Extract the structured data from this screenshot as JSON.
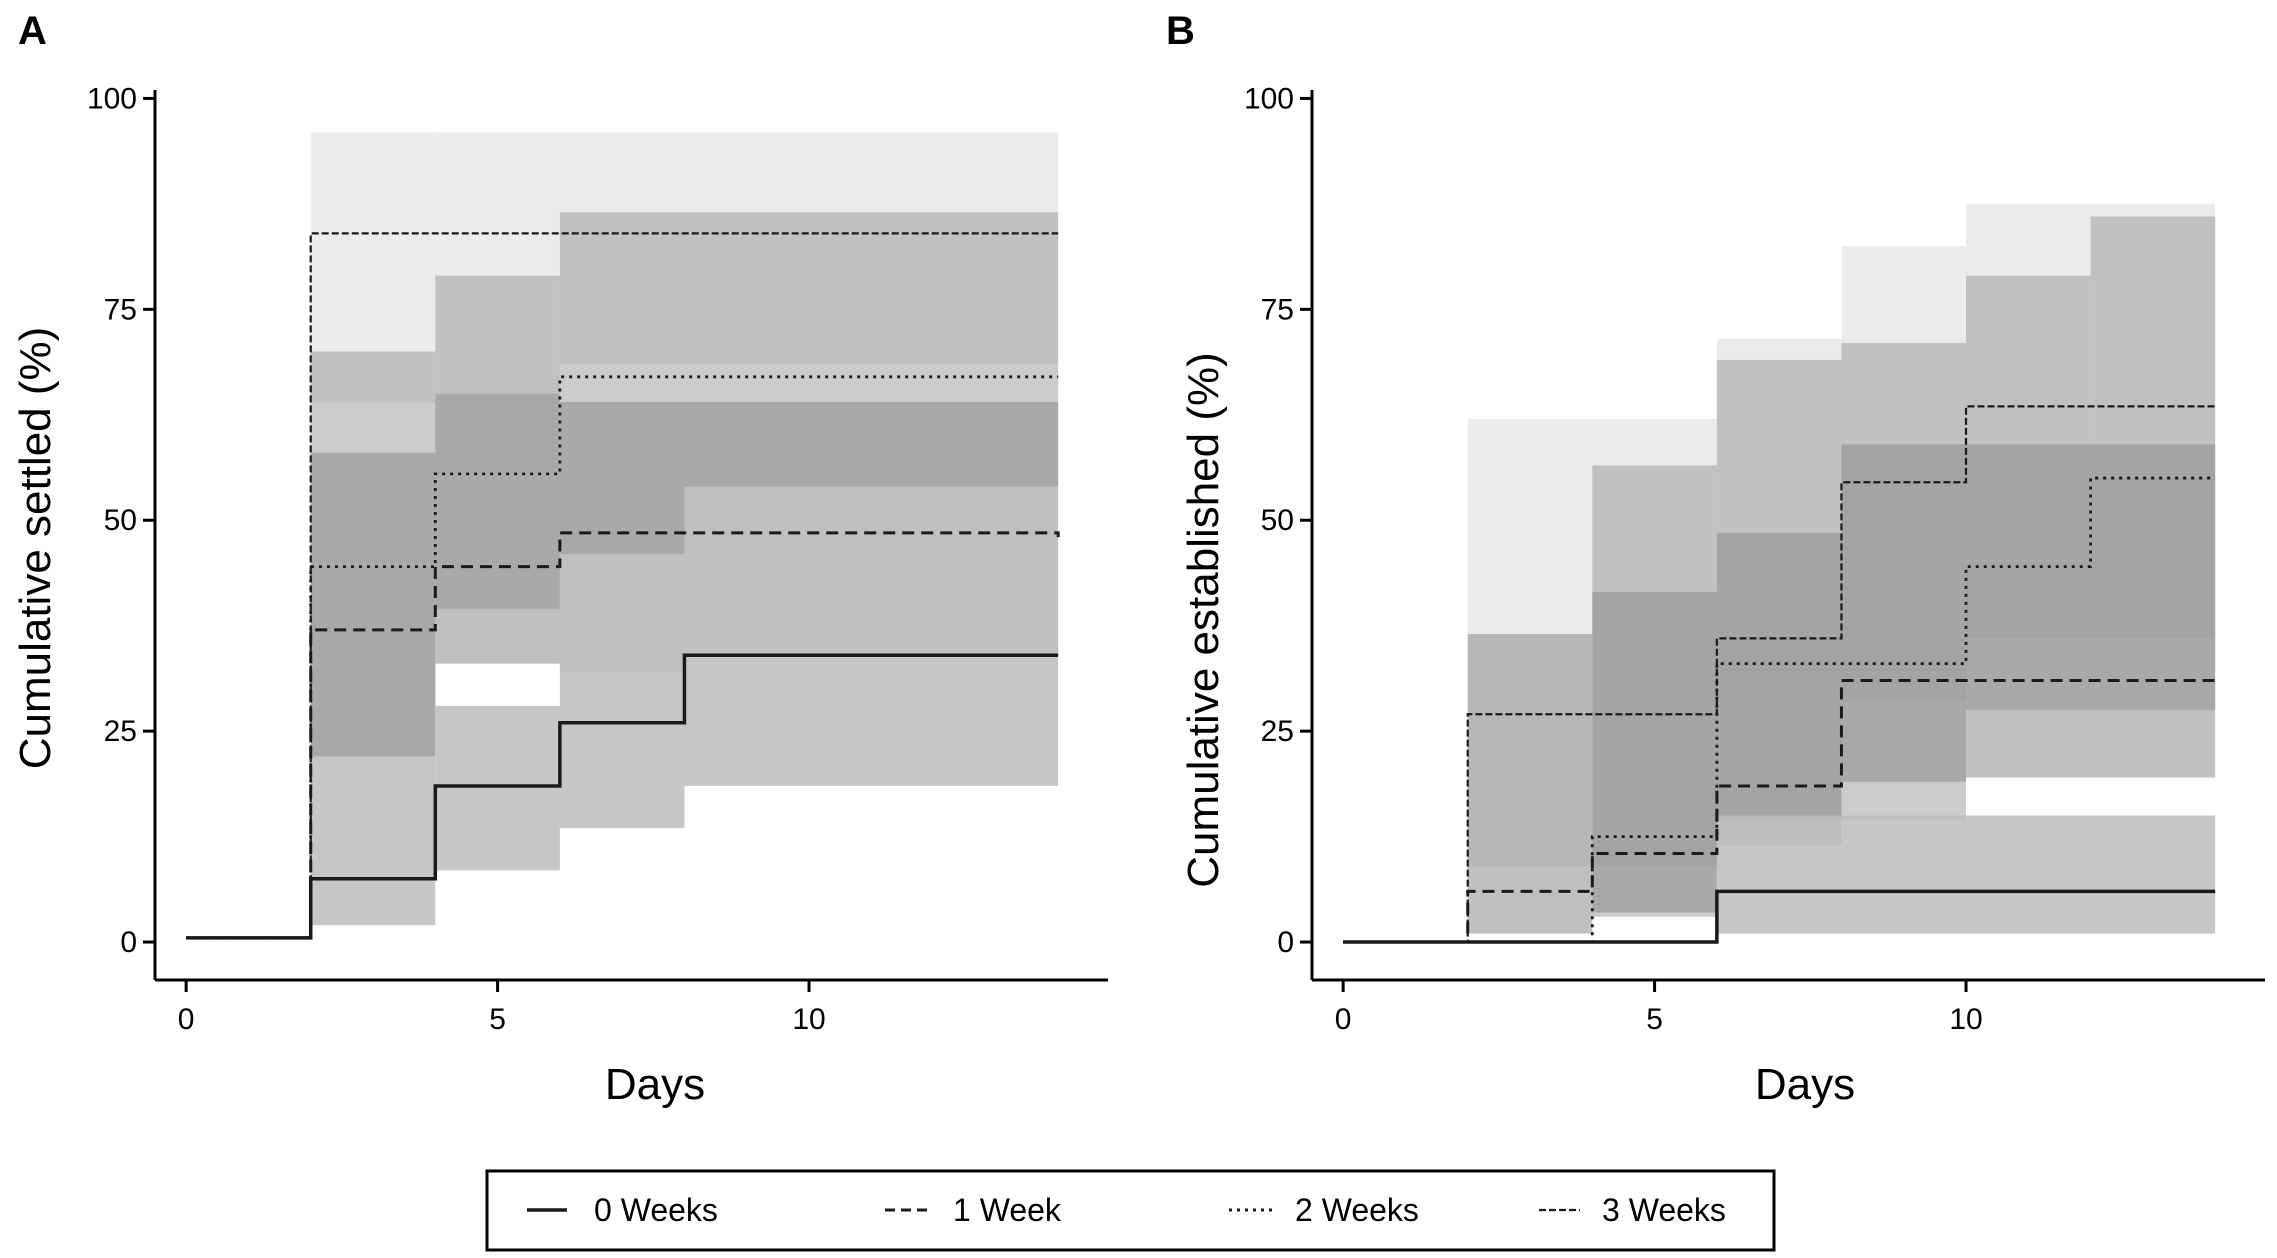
{
  "chart_data": [
    {
      "panel": "A",
      "type": "line",
      "step": true,
      "xlabel": "Days",
      "ylabel": "Cumulative settled (%)",
      "xlim": [
        -0.5,
        14.8
      ],
      "ylim": [
        -4.5,
        101
      ],
      "xticks": [
        0,
        5,
        10
      ],
      "yticks": [
        0,
        25,
        50,
        75,
        100
      ],
      "series": [
        {
          "name": "0 Weeks",
          "x": [
            0,
            2,
            4,
            6,
            8,
            14
          ],
          "y": [
            0.5,
            7.5,
            18.5,
            26,
            34,
            34
          ],
          "ci_lower": [
            null,
            2,
            8.5,
            13.5,
            18.5,
            18.5
          ],
          "ci_upper": [
            null,
            22,
            28,
            32,
            34,
            34
          ]
        },
        {
          "name": "1 Week",
          "x": [
            0,
            2,
            4,
            6,
            8,
            14
          ],
          "y": [
            0.5,
            37,
            44.5,
            48.5,
            48.5,
            48
          ],
          "ci_lower": [
            null,
            22,
            33,
            32,
            34,
            34
          ],
          "ci_upper": [
            null,
            58,
            65,
            64,
            64,
            64
          ]
        },
        {
          "name": "2 Weeks",
          "x": [
            0,
            2,
            4,
            6,
            8,
            14
          ],
          "y": [
            0.5,
            44.5,
            55.5,
            67,
            67,
            67
          ],
          "ci_lower": [
            null,
            22,
            39.5,
            46,
            54,
            54
          ],
          "ci_upper": [
            null,
            70,
            79,
            86.5,
            86.5,
            86.5
          ]
        },
        {
          "name": "3 Weeks",
          "x": [
            0,
            2,
            4,
            6,
            8,
            14
          ],
          "y": [
            0.5,
            84,
            84,
            84,
            84,
            84
          ],
          "ci_lower": [
            null,
            64,
            65,
            68.5,
            68.5,
            68.5
          ],
          "ci_upper": [
            null,
            96,
            96,
            96,
            96,
            96
          ]
        }
      ]
    },
    {
      "panel": "B",
      "type": "line",
      "step": true,
      "xlabel": "Days",
      "ylabel": "Cumulative established (%)",
      "xlim": [
        -0.5,
        14.8
      ],
      "ylim": [
        -4.5,
        101
      ],
      "xticks": [
        0,
        5,
        10
      ],
      "yticks": [
        0,
        25,
        50,
        75,
        100
      ],
      "series": [
        {
          "name": "0 Weeks",
          "x": [
            0,
            2,
            4,
            6,
            8,
            10,
            12,
            14
          ],
          "y": [
            0,
            0,
            0,
            6,
            6,
            6,
            6,
            6
          ],
          "ci_lower": [
            null,
            null,
            null,
            1,
            1,
            1,
            1,
            1
          ],
          "ci_upper": [
            null,
            null,
            null,
            15,
            15,
            15,
            15,
            15
          ]
        },
        {
          "name": "1 Week",
          "x": [
            0,
            2,
            4,
            6,
            8,
            10,
            12,
            14
          ],
          "y": [
            0,
            6,
            10.5,
            18.5,
            31,
            31,
            31,
            31
          ],
          "ci_lower": [
            null,
            1,
            3.5,
            11.5,
            19,
            19.5,
            19.5,
            19.5
          ],
          "ci_upper": [
            null,
            36.5,
            41.5,
            48.5,
            59,
            59,
            59,
            59
          ]
        },
        {
          "name": "2 Weeks",
          "x": [
            0,
            2,
            4,
            6,
            8,
            10,
            12,
            14
          ],
          "y": [
            0,
            0,
            12.5,
            33,
            33,
            44.5,
            55,
            55
          ],
          "ci_lower": [
            null,
            null,
            3,
            14.5,
            14.5,
            27.5,
            27.5,
            27.5
          ],
          "ci_upper": [
            null,
            null,
            56.5,
            69,
            71,
            79,
            86,
            86
          ]
        },
        {
          "name": "3 Weeks",
          "x": [
            0,
            2,
            4,
            6,
            8,
            10,
            12,
            14
          ],
          "y": [
            0,
            27,
            27,
            36,
            54.5,
            63.5,
            63.5,
            63.5
          ],
          "ci_lower": [
            null,
            9,
            9,
            14.5,
            28.5,
            36,
            36,
            36
          ],
          "ci_upper": [
            null,
            62,
            62,
            71.5,
            82.5,
            87.5,
            87.5,
            87.5
          ]
        }
      ]
    }
  ],
  "panels": [
    {
      "label": "A"
    },
    {
      "label": "B"
    }
  ],
  "legend": {
    "placement": "bottom-center",
    "items": [
      {
        "label": "0 Weeks",
        "style": "solid"
      },
      {
        "label": "1 Week",
        "style": "dashed"
      },
      {
        "label": "2 Weeks",
        "style": "dotted"
      },
      {
        "label": "3 Weeks",
        "style": "fine-dashed"
      }
    ]
  },
  "colors": {
    "line": "#1a1a1a",
    "band_0": "#bdbdbd",
    "band_1": "#8c8c8c",
    "band_2": "#8f8f8f",
    "band_3": "#e6e6e8",
    "axis": "#000000"
  }
}
